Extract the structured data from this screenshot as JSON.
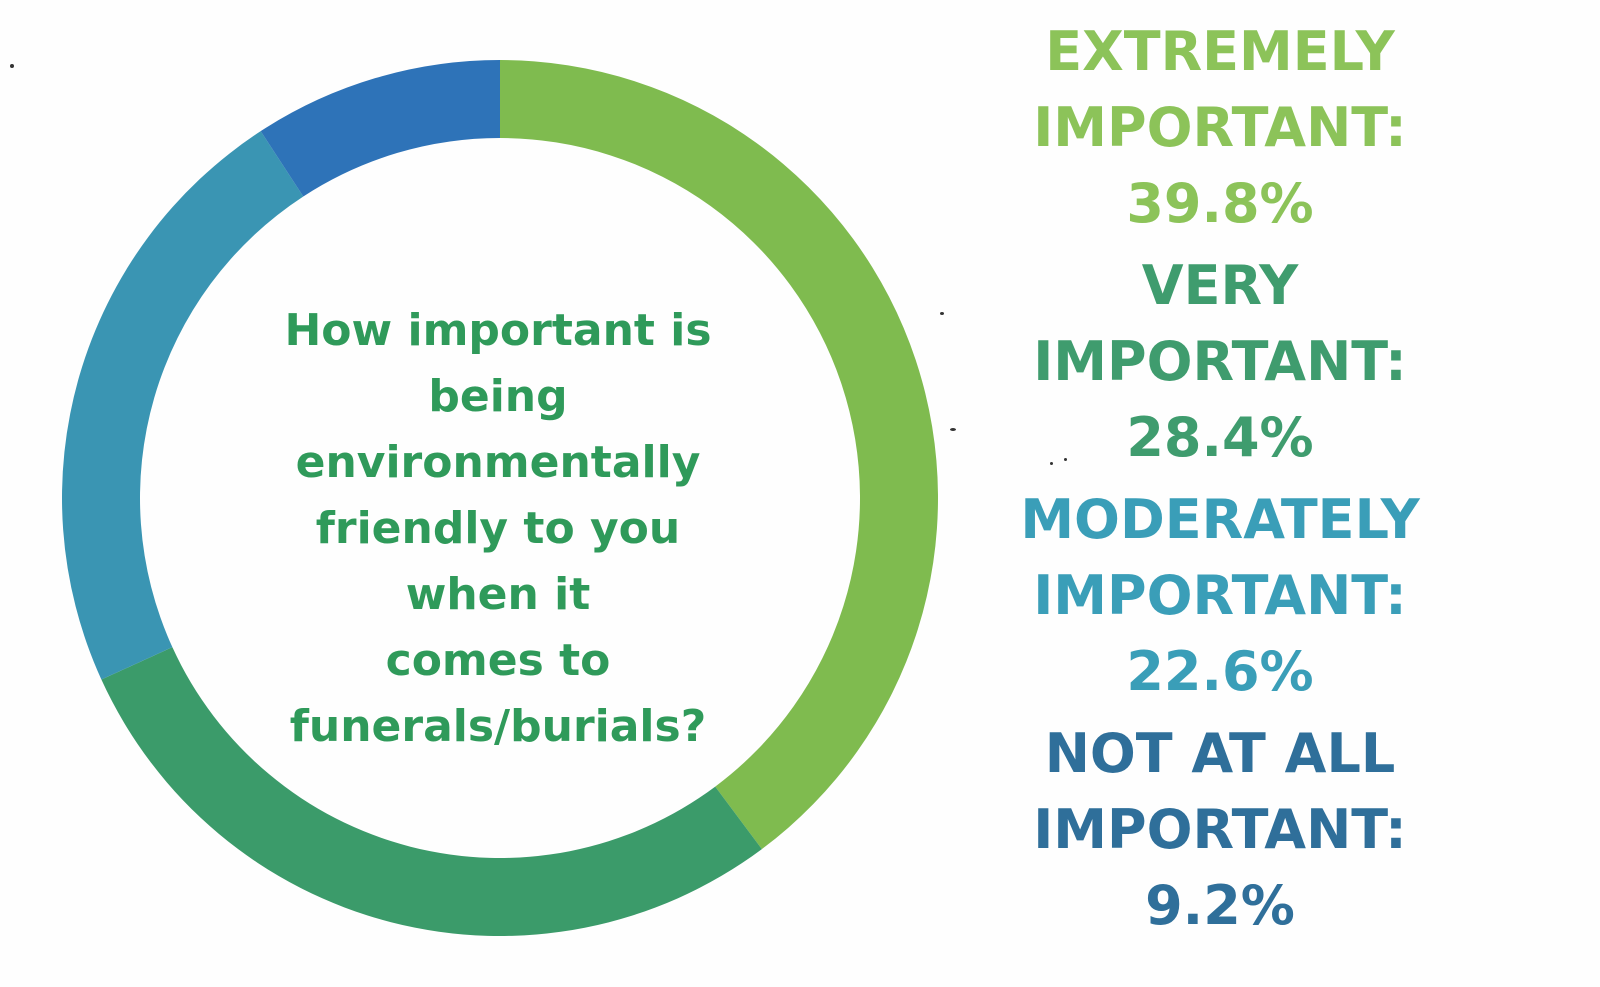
{
  "chart_data": {
    "type": "pie",
    "title": "How important is being environmentally friendly to you when it comes to funerals/burials?",
    "categories": [
      "EXTREMELY IMPORTANT",
      "VERY IMPORTANT",
      "MODERATELY IMPORTANT",
      "NOT AT ALL IMPORTANT"
    ],
    "values": [
      39.8,
      28.4,
      22.6,
      9.2
    ],
    "unit": "%",
    "colors": [
      "#7fbb4f",
      "#3b9b6a",
      "#3a95b3",
      "#2e73b8"
    ],
    "legend": "right"
  },
  "legend": {
    "items": [
      {
        "label_line1": "EXTREMELY",
        "label_line2": "IMPORTANT:",
        "value": "39.8%"
      },
      {
        "label_line1": "VERY",
        "label_line2": "IMPORTANT:",
        "value": "28.4%"
      },
      {
        "label_line1": "MODERATELY",
        "label_line2": "IMPORTANT:",
        "value": "22.6%"
      },
      {
        "label_line1": "NOT AT ALL",
        "label_line2": "IMPORTANT:",
        "value": "9.2%"
      }
    ]
  },
  "question": {
    "line1": "How important is",
    "line2": "being",
    "line3": "environmentally",
    "line4": "friendly to you when it",
    "line5": "comes to",
    "line6": "funerals/burials?"
  }
}
